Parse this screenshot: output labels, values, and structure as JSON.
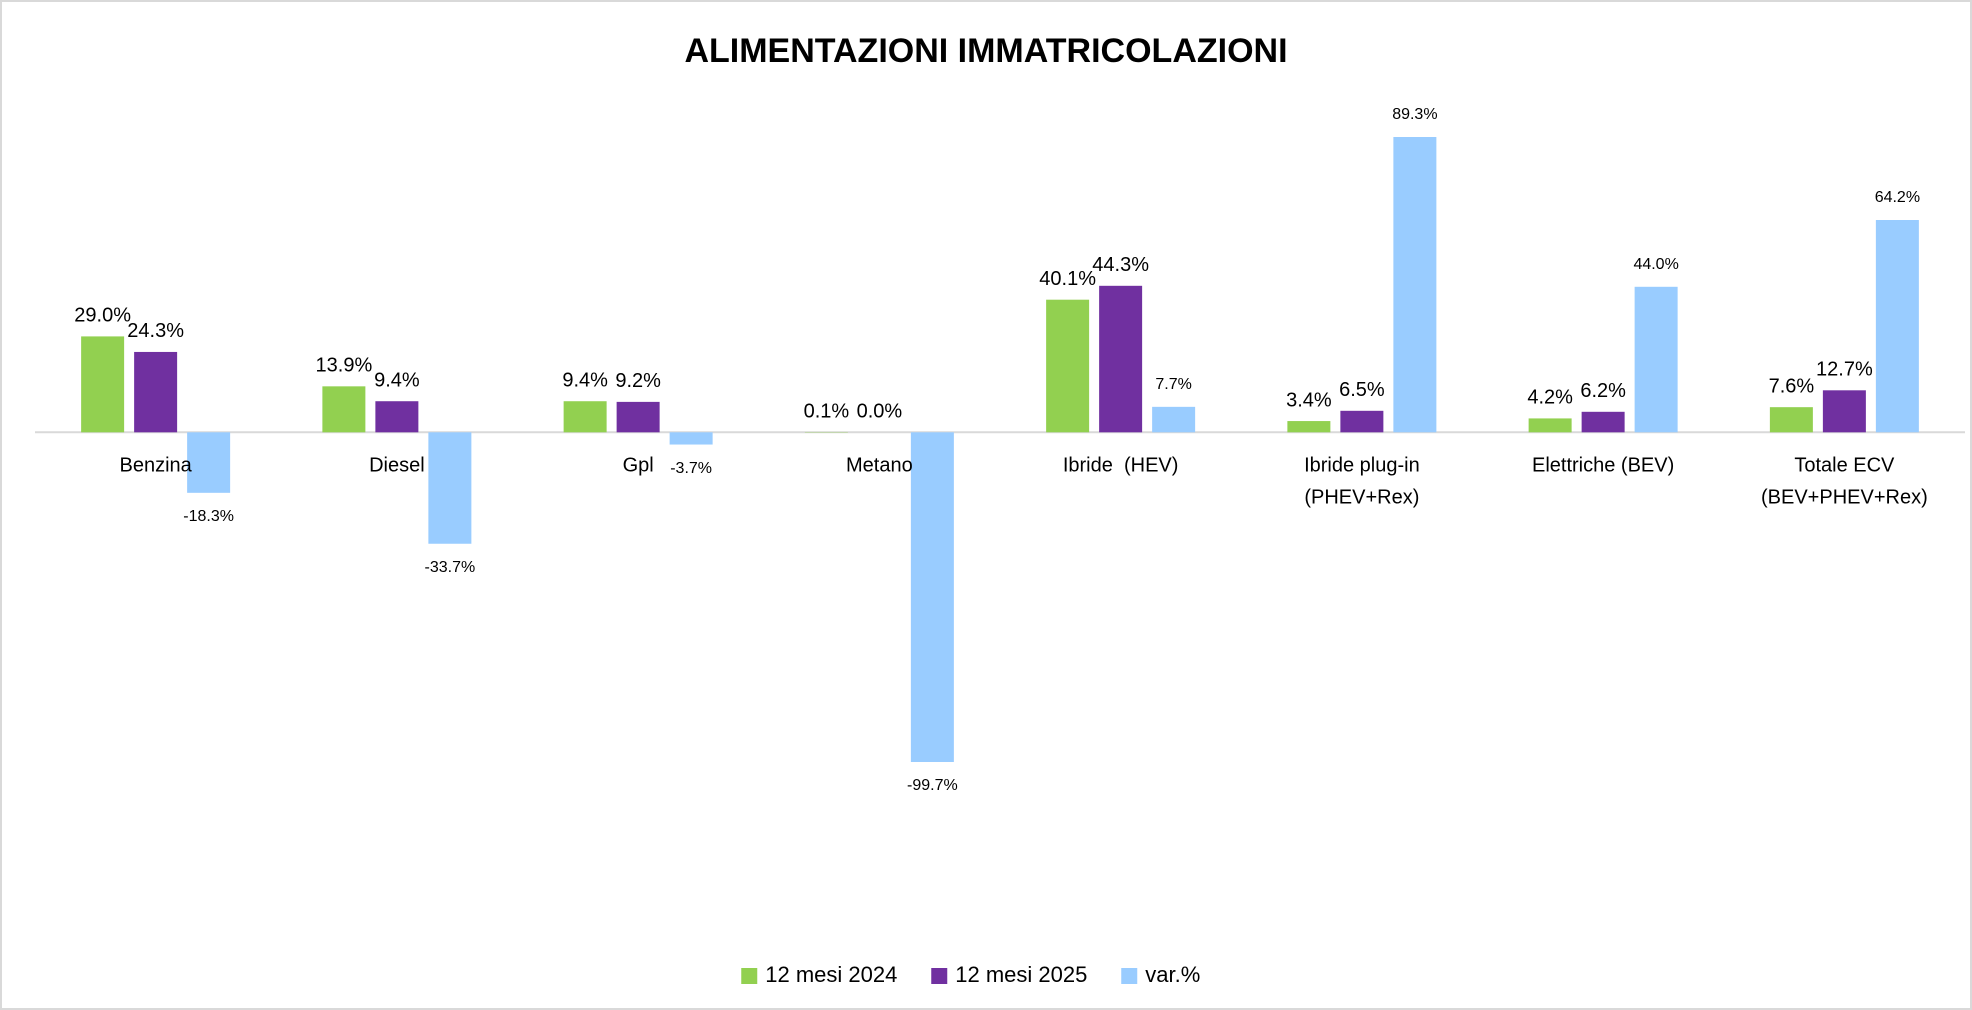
{
  "chart_data": {
    "type": "bar",
    "title": "ALIMENTAZIONI IMMATRICOLAZIONI",
    "categories": [
      [
        "Benzina"
      ],
      [
        "Diesel"
      ],
      [
        "Gpl"
      ],
      [
        "Metano"
      ],
      [
        "Ibride  (HEV)"
      ],
      [
        "Ibride plug-in",
        "(PHEV+Rex)"
      ],
      [
        "Elettriche (BEV)"
      ],
      [
        "Totale ECV",
        "(BEV+PHEV+Rex)"
      ]
    ],
    "series": [
      {
        "name": "12 mesi 2024",
        "color": "#92d050",
        "values": [
          29.0,
          13.9,
          9.4,
          0.1,
          40.1,
          3.4,
          4.2,
          7.6
        ],
        "value_labels": [
          "29.0%",
          "13.9%",
          "9.4%",
          "0.1%",
          "40.1%",
          "3.4%",
          "4.2%",
          "7.6%"
        ]
      },
      {
        "name": "12 mesi 2025",
        "color": "#7030a0",
        "values": [
          24.3,
          9.4,
          9.2,
          0.0,
          44.3,
          6.5,
          6.2,
          12.7
        ],
        "value_labels": [
          "24.3%",
          "9.4%",
          "9.2%",
          "0.0%",
          "44.3%",
          "6.5%",
          "6.2%",
          "12.7%"
        ]
      },
      {
        "name": "var.%",
        "color": "#99ccff",
        "values": [
          -18.3,
          -33.7,
          -3.7,
          -99.7,
          7.7,
          89.3,
          44.0,
          64.2
        ],
        "value_labels": [
          "-18.3%",
          "-33.7%",
          "-3.7%",
          "-99.7%",
          "7.7%",
          "89.3%",
          "44.0%",
          "64.2%"
        ]
      }
    ],
    "legend": "bottom"
  }
}
